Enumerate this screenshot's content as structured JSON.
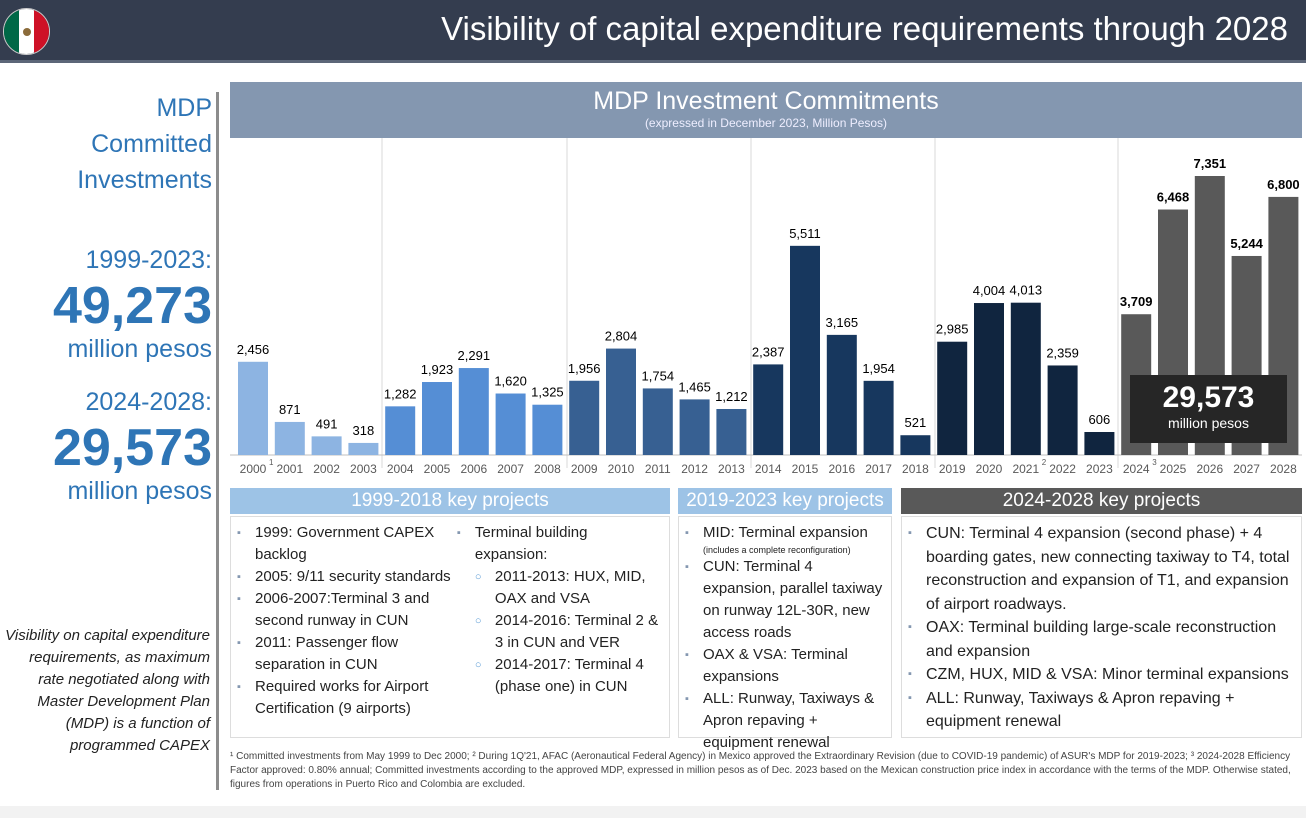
{
  "header": {
    "title": "Visibility of capital expenditure requirements through 2028",
    "flag_icon": "mexico-flag"
  },
  "left": {
    "heading1": "MDP",
    "heading2": "Committed",
    "heading3": "Investments",
    "period1": "1999-2023:",
    "value1": "49,273",
    "unit1": "million pesos",
    "period2": "2024-2028:",
    "value2": "29,573",
    "unit2": "million pesos",
    "note": "Visibility on capital expenditure requirements, as maximum rate negotiated along with Master Development Plan (MDP) is a function of programmed CAPEX"
  },
  "chart_data": {
    "type": "bar",
    "title": "MDP Investment Commitments",
    "subtitle": "(expressed in December 2023, Million Pesos)",
    "categories": [
      "2000",
      "2001",
      "2002",
      "2003",
      "2004",
      "2005",
      "2006",
      "2007",
      "2008",
      "2009",
      "2010",
      "2011",
      "2012",
      "2013",
      "2014",
      "2015",
      "2016",
      "2017",
      "2018",
      "2019",
      "2020",
      "2021",
      "2022",
      "2023",
      "2024",
      "2025",
      "2026",
      "2027",
      "2028"
    ],
    "values": [
      2456,
      871,
      491,
      318,
      1282,
      1923,
      2291,
      1620,
      1325,
      1956,
      2804,
      1754,
      1465,
      1212,
      2387,
      5511,
      3165,
      1954,
      521,
      2985,
      4004,
      4013,
      2359,
      606,
      3709,
      6468,
      7351,
      5244,
      6800
    ],
    "labels": [
      "2,456",
      "871",
      "491",
      "318",
      "1,282",
      "1,923",
      "2,291",
      "1,620",
      "1,325",
      "1,956",
      "2,804",
      "1,754",
      "1,465",
      "1,212",
      "2,387",
      "5,511",
      "3,165",
      "1,954",
      "521",
      "2,985",
      "4,004",
      "4,013",
      "2,359",
      "606",
      "3,709",
      "6,468",
      "7,351",
      "5,244",
      "6,800"
    ],
    "footnote_marks": {
      "2000": "1",
      "2021": "2",
      "2024": "3"
    },
    "group_colors": [
      "#8db4e2",
      "#558ed5",
      "#376092",
      "#17375e",
      "#10253f",
      "#595959"
    ],
    "ylim": [
      0,
      7500
    ],
    "grid": false
  },
  "summary": {
    "value": "29,573",
    "unit": "million pesos"
  },
  "panels": [
    {
      "title": "1999-2018 key projects",
      "color": "#9dc3e6"
    },
    {
      "title": "2019-2023 key projects",
      "color": "#9dc3e6"
    },
    {
      "title": "2024-2028 key projects",
      "color": "#595959"
    }
  ],
  "p1a": [
    "1999: Government CAPEX backlog",
    "2005: 9/11 security standards",
    "2006-2007:Terminal 3 and second runway in CUN",
    "2011: Passenger flow separation in CUN",
    "Required works for Airport Certification (9 airports)"
  ],
  "p1b": {
    "head": "Terminal building expansion:",
    "subs": [
      "2011-2013: HUX, MID, OAX and VSA",
      "2014-2016: Terminal 2 & 3 in CUN and VER",
      "2014-2017: Terminal 4 (phase one) in CUN"
    ]
  },
  "p2": {
    "first": "MID: Terminal expansion",
    "first_note": "(includes a complete reconfiguration)",
    "items": [
      "CUN: Terminal 4 expansion, parallel taxiway on runway 12L-30R, new access roads",
      "OAX & VSA: Terminal expansions",
      "ALL: Runway, Taxiways & Apron repaving + equipment renewal"
    ]
  },
  "p3": [
    "CUN: Terminal 4 expansion (second phase) + 4 boarding gates, new connecting taxiway to T4, total reconstruction and expansion of T1, and expansion of airport roadways.",
    "OAX: Terminal building large-scale reconstruction and expansion",
    "CZM, HUX, MID & VSA: Minor terminal expansions",
    "ALL: Runway, Taxiways & Apron repaving + equipment renewal"
  ],
  "footnote": "¹ Committed investments from May 1999 to Dec 2000; ² During 1Q'21, AFAC (Aeronautical Federal Agency) in Mexico approved the Extraordinary Revision (due to COVID-19 pandemic) of ASUR's MDP for 2019-2023; ³ 2024-2028 Efficiency Factor approved: 0.80% annual;  Committed investments according to the approved MDP, expressed in million pesos as of Dec. 2023 based on the Mexican construction price index in accordance with the terms of the MDP. Otherwise stated, figures from operations in Puerto Rico and Colombia are excluded."
}
